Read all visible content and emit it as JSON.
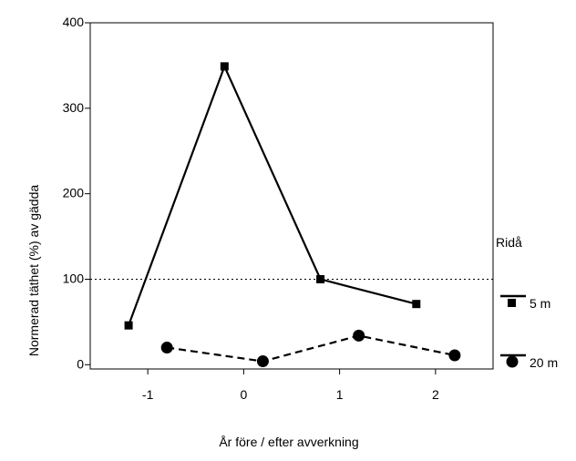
{
  "chart_data": {
    "type": "line",
    "title": "",
    "xlabel": "År före / efter avverkning",
    "ylabel": "Normerad täthet (%) av gädda",
    "xlim": [
      -1.6,
      2.6
    ],
    "ylim": [
      -5,
      400
    ],
    "x_ticks": [
      -1,
      0,
      1,
      2
    ],
    "x_tick_labels": [
      "-1",
      "0",
      "1",
      "2"
    ],
    "y_ticks": [
      0,
      100,
      200,
      300,
      400
    ],
    "y_tick_labels": [
      "0",
      "100",
      "200",
      "300",
      "400"
    ],
    "reference_line": {
      "y": 100,
      "style": "dotted"
    },
    "grid": false,
    "legend": {
      "title": "Ridå",
      "placement": "right"
    },
    "series": [
      {
        "name": "5 m",
        "marker": "square",
        "line_style": "solid",
        "x": [
          -1.2,
          -0.2,
          0.8,
          1.8
        ],
        "values": [
          46,
          349,
          100,
          71
        ]
      },
      {
        "name": "20 m",
        "marker": "circle",
        "line_style": "dashed",
        "x": [
          -0.8,
          0.2,
          1.2,
          2.2
        ],
        "values": [
          20,
          4,
          34,
          11
        ]
      }
    ],
    "colors": {
      "ink": "#000000",
      "background": "#ffffff"
    }
  }
}
